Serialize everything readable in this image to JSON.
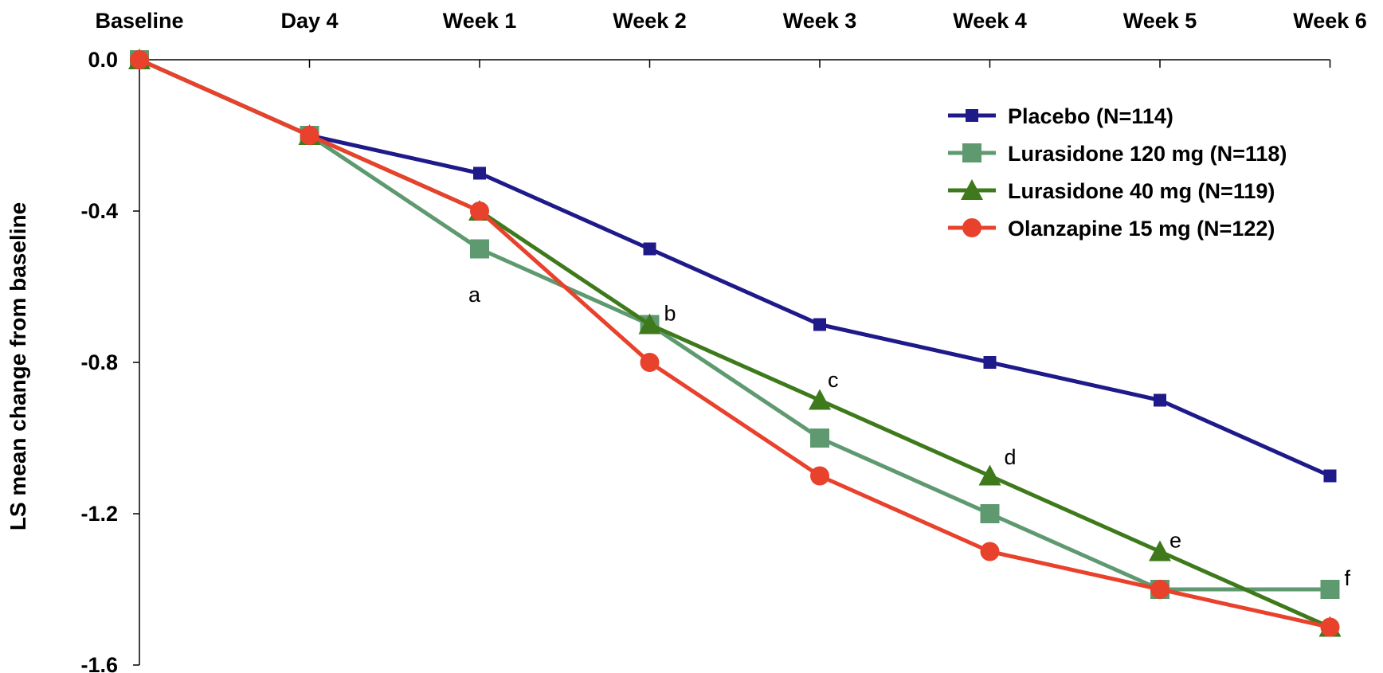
{
  "chart_data": {
    "type": "line",
    "title": "",
    "xlabel": "",
    "ylabel": "LS mean change from baseline",
    "categories": [
      "Baseline",
      "Day 4",
      "Week 1",
      "Week 2",
      "Week 3",
      "Week 4",
      "Week 5",
      "Week 6"
    ],
    "ylim": [
      -1.6,
      0.0
    ],
    "yticks": [
      0.0,
      -0.4,
      -0.8,
      -1.2,
      -1.6
    ],
    "ytick_labels": [
      "0.0",
      "-0.4",
      "-0.8",
      "-1.2",
      "-1.6"
    ],
    "x_axis_position": "top",
    "grid": false,
    "legend_position": "top-right",
    "series": [
      {
        "name": "Placebo (N=114)",
        "color": "#1f1a8a",
        "marker": "square",
        "values": [
          0.0,
          -0.2,
          -0.3,
          -0.5,
          -0.7,
          -0.8,
          -0.9,
          -1.1
        ]
      },
      {
        "name": "Lurasidone 120 mg (N=118)",
        "color": "#5e9970",
        "marker": "square",
        "values": [
          0.0,
          -0.2,
          -0.5,
          -0.7,
          -1.0,
          -1.2,
          -1.4,
          -1.4
        ]
      },
      {
        "name": "Lurasidone 40 mg (N=119)",
        "color": "#3e7a1c",
        "marker": "triangle",
        "values": [
          0.0,
          -0.2,
          -0.4,
          -0.7,
          -0.9,
          -1.1,
          -1.3,
          -1.5
        ]
      },
      {
        "name": "Olanzapine 15 mg (N=122)",
        "color": "#e8412c",
        "marker": "circle",
        "values": [
          0.0,
          -0.2,
          -0.4,
          -0.8,
          -1.1,
          -1.3,
          -1.4,
          -1.5
        ]
      }
    ],
    "annotations": [
      {
        "text": "a",
        "category": "Week 1",
        "y": -0.6
      },
      {
        "text": "b",
        "category": "Week 2",
        "y": -0.67
      },
      {
        "text": "c",
        "category": "Week 3",
        "y": -0.85
      },
      {
        "text": "d",
        "category": "Week 4",
        "y": -1.05
      },
      {
        "text": "e",
        "category": "Week 5",
        "y": -1.27
      },
      {
        "text": "f",
        "category": "Week 6",
        "y": -1.37
      }
    ]
  }
}
